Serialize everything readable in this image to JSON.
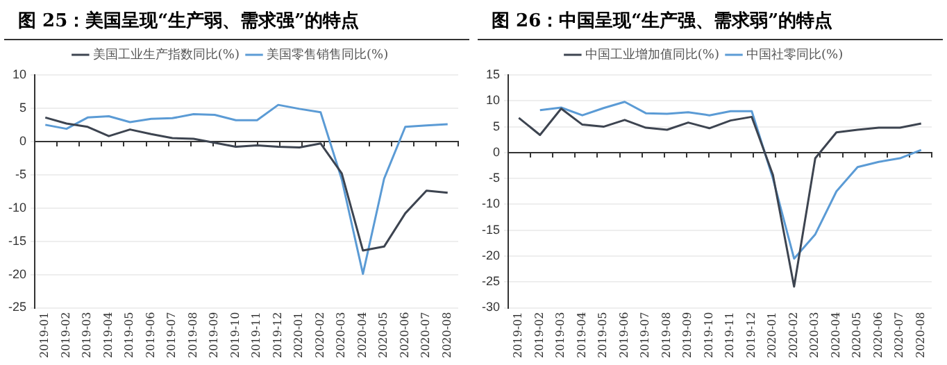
{
  "chart_data": [
    {
      "type": "line",
      "title": "图 25：美国呈现“生产弱、需求强”的特点",
      "categories": [
        "2019-01",
        "2019-02",
        "2019-03",
        "2019-04",
        "2019-05",
        "2019-06",
        "2019-07",
        "2019-08",
        "2019-09",
        "2019-10",
        "2019-11",
        "2019-12",
        "2020-01",
        "2020-02",
        "2020-03",
        "2020-04",
        "2020-05",
        "2020-06",
        "2020-07",
        "2020-08"
      ],
      "series": [
        {
          "name": "美国工业生产指数同比(%)",
          "color": "#3d4450",
          "values": [
            3.6,
            2.7,
            2.2,
            0.8,
            1.8,
            1.1,
            0.5,
            0.4,
            -0.2,
            -0.8,
            -0.6,
            -0.8,
            -0.9,
            -0.3,
            -4.8,
            -16.4,
            -15.8,
            -10.8,
            -7.4,
            -7.7
          ]
        },
        {
          "name": "美国零售销售同比(%)",
          "color": "#5b9bd5",
          "values": [
            2.5,
            1.9,
            3.6,
            3.8,
            2.9,
            3.4,
            3.5,
            4.1,
            4.0,
            3.2,
            3.2,
            5.5,
            4.9,
            4.4,
            -5.7,
            -19.9,
            -5.6,
            2.2,
            2.4,
            2.6
          ]
        }
      ],
      "ylim": [
        -25,
        10
      ],
      "yticks": [
        -25,
        -20,
        -15,
        -10,
        -5,
        0,
        5,
        10
      ],
      "grid": "y",
      "legend": "top"
    },
    {
      "type": "line",
      "title": "图 26：中国呈现“生产强、需求弱”的特点",
      "categories": [
        "2019-01",
        "2019-02",
        "2019-03",
        "2019-04",
        "2019-05",
        "2019-06",
        "2019-07",
        "2019-08",
        "2019-09",
        "2019-10",
        "2019-11",
        "2019-12",
        "2020-01",
        "2020-02",
        "2020-03",
        "2020-04",
        "2020-05",
        "2020-06",
        "2020-07",
        "2020-08"
      ],
      "series": [
        {
          "name": "中国工业增加值同比(%)",
          "color": "#3d4450",
          "values": [
            6.7,
            3.4,
            8.5,
            5.4,
            5.0,
            6.3,
            4.8,
            4.4,
            5.8,
            4.7,
            6.2,
            6.9,
            -4.3,
            -25.9,
            -1.1,
            3.9,
            4.4,
            4.8,
            4.8,
            5.6
          ]
        },
        {
          "name": "中国社零同比(%)",
          "color": "#5b9bd5",
          "values": [
            null,
            8.2,
            8.7,
            7.2,
            8.6,
            9.8,
            7.6,
            7.5,
            7.8,
            7.2,
            8.0,
            8.0,
            -5.0,
            -20.5,
            -15.8,
            -7.5,
            -2.8,
            -1.8,
            -1.1,
            0.5
          ]
        }
      ],
      "ylim": [
        -30,
        15
      ],
      "yticks": [
        -30,
        -25,
        -20,
        -15,
        -10,
        -5,
        0,
        5,
        10,
        15
      ],
      "grid": "y",
      "legend": "top"
    }
  ]
}
